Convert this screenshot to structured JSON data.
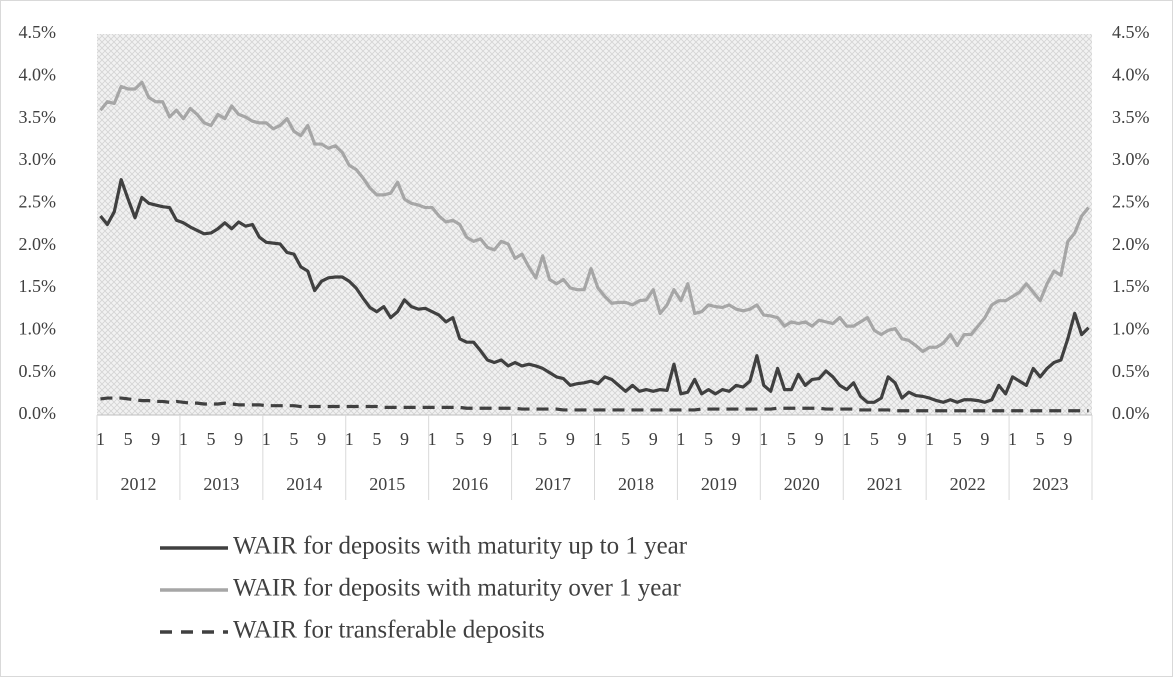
{
  "chart_data": {
    "type": "line",
    "categories": [
      "1",
      null,
      null,
      null,
      "5",
      null,
      null,
      null,
      "9",
      null,
      null,
      null,
      "1",
      null,
      null,
      null,
      "5",
      null,
      null,
      null,
      "9",
      null,
      null,
      null,
      "1",
      null,
      null,
      null,
      "5",
      null,
      null,
      null,
      "9",
      null,
      null,
      null,
      "1",
      null,
      null,
      null,
      "5",
      null,
      null,
      null,
      "9",
      null,
      null,
      null,
      "1",
      null,
      null,
      null,
      "5",
      null,
      null,
      null,
      "9",
      null,
      null,
      null,
      "1",
      null,
      null,
      null,
      "5",
      null,
      null,
      null,
      "9",
      null,
      null,
      null,
      "1",
      null,
      null,
      null,
      "5",
      null,
      null,
      null,
      "9",
      null,
      null,
      null,
      "1",
      null,
      null,
      null,
      "5",
      null,
      null,
      null,
      "9",
      null,
      null,
      null,
      "1",
      null,
      null,
      null,
      "5",
      null,
      null,
      null,
      "9",
      null,
      null,
      null,
      "1",
      null,
      null,
      null,
      "5",
      null,
      null,
      null,
      "9",
      null,
      null,
      null,
      "1",
      null,
      null,
      null,
      "5",
      null,
      null,
      null,
      "9",
      null,
      null,
      null,
      "1",
      null,
      null,
      null,
      "5",
      null,
      null,
      null,
      "9",
      null,
      null,
      null
    ],
    "years": [
      "2012",
      "2013",
      "2014",
      "2015",
      "2016",
      "2017",
      "2018",
      "2019",
      "2020",
      "2021",
      "2022",
      "2023"
    ],
    "series": [
      {
        "name": "WAIR for deposits with maturity up to 1 year",
        "color": "#404040",
        "dash": false,
        "values": [
          2.35,
          2.25,
          2.4,
          2.78,
          2.55,
          2.33,
          2.57,
          2.5,
          2.48,
          2.46,
          2.45,
          2.3,
          2.27,
          2.22,
          2.18,
          2.14,
          2.15,
          2.2,
          2.27,
          2.2,
          2.28,
          2.23,
          2.25,
          2.1,
          2.04,
          2.03,
          2.02,
          1.92,
          1.9,
          1.75,
          1.7,
          1.47,
          1.58,
          1.62,
          1.63,
          1.63,
          1.58,
          1.5,
          1.38,
          1.27,
          1.22,
          1.28,
          1.15,
          1.22,
          1.36,
          1.28,
          1.25,
          1.26,
          1.22,
          1.18,
          1.1,
          1.15,
          0.9,
          0.86,
          0.86,
          0.76,
          0.65,
          0.62,
          0.65,
          0.58,
          0.62,
          0.58,
          0.6,
          0.58,
          0.55,
          0.5,
          0.45,
          0.43,
          0.35,
          0.37,
          0.38,
          0.4,
          0.37,
          0.45,
          0.42,
          0.35,
          0.28,
          0.35,
          0.28,
          0.3,
          0.28,
          0.3,
          0.29,
          0.6,
          0.25,
          0.27,
          0.42,
          0.25,
          0.3,
          0.25,
          0.3,
          0.28,
          0.35,
          0.33,
          0.4,
          0.7,
          0.35,
          0.28,
          0.55,
          0.3,
          0.3,
          0.48,
          0.35,
          0.42,
          0.43,
          0.52,
          0.45,
          0.35,
          0.3,
          0.38,
          0.22,
          0.15,
          0.15,
          0.2,
          0.45,
          0.38,
          0.2,
          0.27,
          0.23,
          0.22,
          0.2,
          0.17,
          0.15,
          0.18,
          0.15,
          0.18,
          0.18,
          0.17,
          0.15,
          0.18,
          0.35,
          0.25,
          0.45,
          0.4,
          0.35,
          0.55,
          0.45,
          0.55,
          0.62,
          0.65,
          0.9,
          1.2,
          0.95,
          1.03
        ]
      },
      {
        "name": "WAIR for deposits with maturity over 1 year",
        "color": "#a6a6a6",
        "dash": false,
        "values": [
          3.6,
          3.7,
          3.68,
          3.88,
          3.85,
          3.85,
          3.93,
          3.75,
          3.7,
          3.7,
          3.52,
          3.6,
          3.5,
          3.62,
          3.55,
          3.45,
          3.42,
          3.55,
          3.5,
          3.65,
          3.55,
          3.52,
          3.47,
          3.45,
          3.45,
          3.38,
          3.42,
          3.5,
          3.35,
          3.3,
          3.42,
          3.2,
          3.2,
          3.15,
          3.18,
          3.1,
          2.95,
          2.9,
          2.8,
          2.68,
          2.6,
          2.6,
          2.62,
          2.75,
          2.55,
          2.5,
          2.48,
          2.45,
          2.45,
          2.35,
          2.28,
          2.3,
          2.25,
          2.1,
          2.05,
          2.08,
          1.98,
          1.95,
          2.05,
          2.02,
          1.85,
          1.9,
          1.75,
          1.62,
          1.88,
          1.6,
          1.55,
          1.6,
          1.5,
          1.48,
          1.48,
          1.73,
          1.5,
          1.4,
          1.32,
          1.33,
          1.33,
          1.3,
          1.35,
          1.36,
          1.48,
          1.2,
          1.3,
          1.48,
          1.35,
          1.55,
          1.2,
          1.22,
          1.3,
          1.28,
          1.27,
          1.3,
          1.25,
          1.23,
          1.25,
          1.3,
          1.18,
          1.17,
          1.15,
          1.05,
          1.1,
          1.08,
          1.1,
          1.05,
          1.12,
          1.1,
          1.08,
          1.15,
          1.05,
          1.05,
          1.1,
          1.15,
          1.0,
          0.95,
          1.0,
          1.02,
          0.9,
          0.88,
          0.82,
          0.75,
          0.8,
          0.8,
          0.85,
          0.95,
          0.82,
          0.95,
          0.95,
          1.05,
          1.15,
          1.3,
          1.35,
          1.35,
          1.4,
          1.45,
          1.55,
          1.45,
          1.35,
          1.55,
          1.7,
          1.65,
          2.05,
          2.15,
          2.35,
          2.45
        ]
      },
      {
        "name": "WAIR for transferable deposits",
        "color": "#404040",
        "dash": true,
        "values": [
          0.19,
          0.2,
          0.2,
          0.2,
          0.19,
          0.18,
          0.17,
          0.17,
          0.16,
          0.16,
          0.15,
          0.16,
          0.15,
          0.14,
          0.14,
          0.13,
          0.13,
          0.13,
          0.14,
          0.13,
          0.12,
          0.12,
          0.12,
          0.12,
          0.11,
          0.11,
          0.11,
          0.11,
          0.11,
          0.1,
          0.1,
          0.1,
          0.1,
          0.1,
          0.1,
          0.1,
          0.1,
          0.1,
          0.1,
          0.1,
          0.1,
          0.09,
          0.09,
          0.09,
          0.09,
          0.09,
          0.09,
          0.09,
          0.09,
          0.09,
          0.09,
          0.09,
          0.09,
          0.08,
          0.08,
          0.08,
          0.08,
          0.08,
          0.08,
          0.08,
          0.08,
          0.07,
          0.07,
          0.07,
          0.07,
          0.07,
          0.07,
          0.06,
          0.06,
          0.06,
          0.06,
          0.06,
          0.06,
          0.06,
          0.06,
          0.06,
          0.06,
          0.06,
          0.06,
          0.06,
          0.06,
          0.06,
          0.06,
          0.06,
          0.06,
          0.06,
          0.06,
          0.07,
          0.07,
          0.07,
          0.07,
          0.07,
          0.07,
          0.07,
          0.07,
          0.07,
          0.07,
          0.07,
          0.08,
          0.08,
          0.08,
          0.08,
          0.08,
          0.08,
          0.08,
          0.07,
          0.07,
          0.07,
          0.07,
          0.07,
          0.06,
          0.06,
          0.06,
          0.06,
          0.06,
          0.05,
          0.05,
          0.05,
          0.05,
          0.05,
          0.05,
          0.05,
          0.05,
          0.05,
          0.05,
          0.05,
          0.05,
          0.05,
          0.05,
          0.05,
          0.05,
          0.05,
          0.05,
          0.05,
          0.05,
          0.05,
          0.05,
          0.05,
          0.05,
          0.05,
          0.05,
          0.05,
          0.05,
          0.05
        ]
      }
    ],
    "ylim": [
      0,
      4.5
    ],
    "yticks": [
      {
        "value": 0,
        "label": "0.0%"
      },
      {
        "value": 0.5,
        "label": "0.5%"
      },
      {
        "value": 1,
        "label": "1.0%"
      },
      {
        "value": 1.5,
        "label": "1.5%"
      },
      {
        "value": 2,
        "label": "2.0%"
      },
      {
        "value": 2.5,
        "label": "2.5%"
      },
      {
        "value": 3,
        "label": "3.0%"
      },
      {
        "value": 3.5,
        "label": "3.5%"
      },
      {
        "value": 4,
        "label": "4.0%"
      },
      {
        "value": 4.5,
        "label": "4.5%"
      }
    ],
    "y2lim": [
      0,
      4.5
    ],
    "y2ticks": [
      {
        "value": 0,
        "label": "0.0%"
      },
      {
        "value": 0.5,
        "label": "0.5%"
      },
      {
        "value": 1,
        "label": "1.0%"
      },
      {
        "value": 1.5,
        "label": "1.5%"
      },
      {
        "value": 2,
        "label": "2.0%"
      },
      {
        "value": 2.5,
        "label": "2.5%"
      },
      {
        "value": 3,
        "label": "3.0%"
      },
      {
        "value": 3.5,
        "label": "3.5%"
      },
      {
        "value": 4,
        "label": "4.0%"
      },
      {
        "value": 4.5,
        "label": "4.5%"
      }
    ],
    "grid": false,
    "legend": "bottom"
  }
}
